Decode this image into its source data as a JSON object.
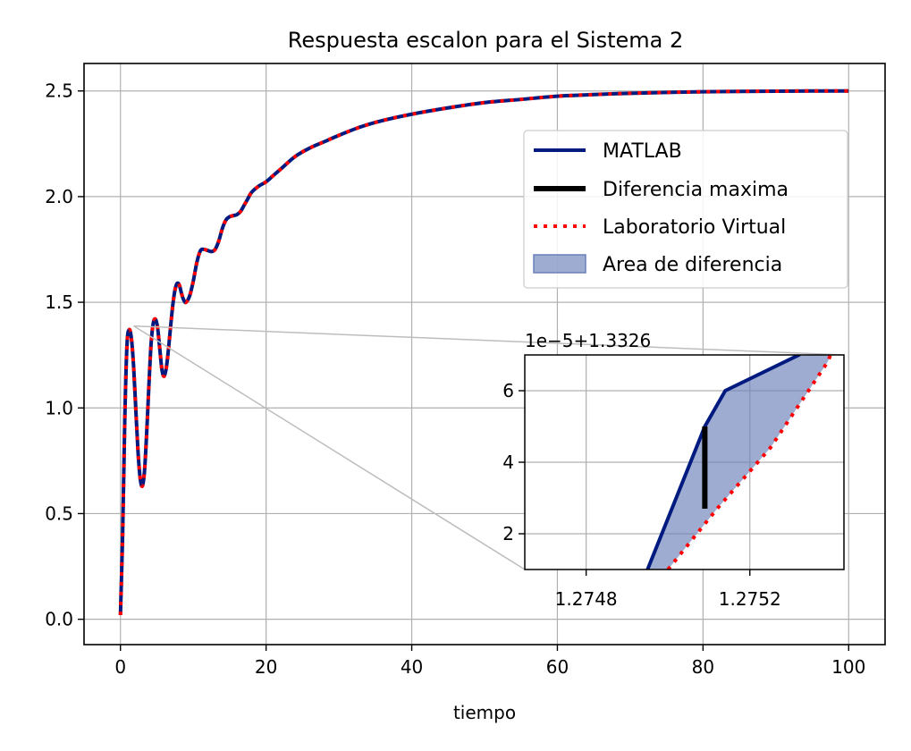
{
  "chart_data": {
    "type": "line",
    "title": "Respuesta escalon para el Sistema 2",
    "xlabel": "tiempo",
    "ylabel": "",
    "xlim": [
      -5,
      105
    ],
    "ylim": [
      -0.12,
      2.63
    ],
    "xticks": [
      0,
      20,
      40,
      60,
      80,
      100
    ],
    "xtick_labels": [
      "0",
      "20",
      "40",
      "60",
      "80",
      "100"
    ],
    "yticks": [
      0.0,
      0.5,
      1.0,
      1.5,
      2.0,
      2.5
    ],
    "ytick_labels": [
      "0.0",
      "0.5",
      "1.0",
      "1.5",
      "2.0",
      "2.5"
    ],
    "grid": true,
    "legend_position": "upper right",
    "colors": {
      "matlab": "#001a80",
      "diff": "#000000",
      "virtual": "#ff0000",
      "area": "#6b7fb8"
    },
    "series": [
      {
        "name": "MATLAB",
        "style": "solid",
        "x": [
          0,
          0.3,
          0.6,
          0.9,
          1.2,
          1.5,
          1.8,
          2.1,
          2.4,
          2.7,
          3.0,
          3.3,
          3.6,
          3.9,
          4.2,
          4.5,
          4.8,
          5.1,
          5.4,
          5.7,
          6.0,
          6.3,
          6.6,
          6.9,
          7.2,
          7.5,
          7.8,
          8.1,
          8.4,
          8.7,
          9.0,
          9.5,
          10.0,
          10.5,
          11.0,
          11.5,
          12.0,
          12.5,
          13.0,
          13.5,
          14.0,
          14.5,
          15.0,
          15.5,
          16.0,
          16.5,
          17.0,
          17.5,
          18.0,
          19.0,
          20.0,
          21.0,
          22.0,
          24.0,
          26.0,
          28.0,
          30.0,
          33.0,
          36.0,
          40.0,
          45.0,
          50.0,
          55.0,
          60.0,
          65.0,
          70.0,
          75.0,
          80.0,
          85.0,
          90.0,
          95.0,
          100.0
        ],
        "y": [
          0.02,
          0.4,
          0.95,
          1.3,
          1.37,
          1.33,
          1.2,
          1.0,
          0.8,
          0.67,
          0.63,
          0.7,
          0.88,
          1.1,
          1.3,
          1.4,
          1.42,
          1.38,
          1.28,
          1.18,
          1.15,
          1.19,
          1.28,
          1.39,
          1.49,
          1.56,
          1.59,
          1.58,
          1.54,
          1.51,
          1.5,
          1.53,
          1.6,
          1.69,
          1.745,
          1.75,
          1.745,
          1.74,
          1.75,
          1.79,
          1.85,
          1.89,
          1.905,
          1.91,
          1.915,
          1.93,
          1.96,
          1.99,
          2.02,
          2.05,
          2.07,
          2.1,
          2.13,
          2.19,
          2.23,
          2.26,
          2.29,
          2.33,
          2.36,
          2.39,
          2.42,
          2.445,
          2.46,
          2.475,
          2.483,
          2.489,
          2.493,
          2.496,
          2.498,
          2.499,
          2.5,
          2.5
        ]
      },
      {
        "name": "Laboratorio Virtual",
        "style": "dotted",
        "x": [
          0,
          0.3,
          0.6,
          0.9,
          1.2,
          1.5,
          1.8,
          2.1,
          2.4,
          2.7,
          3.0,
          3.3,
          3.6,
          3.9,
          4.2,
          4.5,
          4.8,
          5.1,
          5.4,
          5.7,
          6.0,
          6.3,
          6.6,
          6.9,
          7.2,
          7.5,
          7.8,
          8.1,
          8.4,
          8.7,
          9.0,
          9.5,
          10.0,
          10.5,
          11.0,
          11.5,
          12.0,
          12.5,
          13.0,
          13.5,
          14.0,
          14.5,
          15.0,
          15.5,
          16.0,
          16.5,
          17.0,
          17.5,
          18.0,
          19.0,
          20.0,
          21.0,
          22.0,
          24.0,
          26.0,
          28.0,
          30.0,
          33.0,
          36.0,
          40.0,
          45.0,
          50.0,
          55.0,
          60.0,
          65.0,
          70.0,
          75.0,
          80.0,
          85.0,
          90.0,
          95.0,
          100.0
        ],
        "y": [
          0.02,
          0.4,
          0.95,
          1.3,
          1.37,
          1.33,
          1.2,
          1.0,
          0.8,
          0.67,
          0.63,
          0.7,
          0.88,
          1.1,
          1.3,
          1.4,
          1.42,
          1.38,
          1.28,
          1.18,
          1.15,
          1.19,
          1.28,
          1.39,
          1.49,
          1.56,
          1.59,
          1.58,
          1.54,
          1.51,
          1.5,
          1.53,
          1.6,
          1.69,
          1.745,
          1.75,
          1.745,
          1.74,
          1.75,
          1.79,
          1.85,
          1.89,
          1.905,
          1.91,
          1.915,
          1.93,
          1.96,
          1.99,
          2.02,
          2.05,
          2.07,
          2.1,
          2.13,
          2.19,
          2.23,
          2.26,
          2.29,
          2.33,
          2.36,
          2.39,
          2.42,
          2.445,
          2.46,
          2.475,
          2.483,
          2.489,
          2.493,
          2.496,
          2.498,
          2.499,
          2.5,
          2.5
        ]
      }
    ],
    "legend": [
      {
        "label": "MATLAB",
        "kind": "solid"
      },
      {
        "label": "Diferencia maxima",
        "kind": "thick"
      },
      {
        "label": "Laboratorio Virtual",
        "kind": "dotted"
      },
      {
        "label": "Area de diferencia",
        "kind": "patch"
      }
    ],
    "inset": {
      "offset_label": "1e−5+1.3326",
      "xlim": [
        1.27465,
        1.27543
      ],
      "ylim": [
        1.0,
        7.0
      ],
      "xticks": [
        1.2748,
        1.2752
      ],
      "xtick_labels": [
        "1.2748",
        "1.2752"
      ],
      "yticks": [
        2,
        4,
        6
      ],
      "ytick_labels": [
        "2",
        "4",
        "6"
      ],
      "zoom_source": {
        "x": [
          0.6,
          1.8
        ],
        "y": 1.3326
      },
      "matlab": {
        "x": [
          1.27495,
          1.27509,
          1.27514,
          1.27532
        ],
        "y": [
          1.0,
          5.0,
          6.0,
          7.0
        ]
      },
      "virtual": {
        "x": [
          1.275,
          1.27512,
          1.27525,
          1.27539
        ],
        "y": [
          1.0,
          2.7,
          4.4,
          6.8
        ]
      },
      "max_diff": {
        "x": 1.27509,
        "y": [
          2.7,
          5.0
        ]
      }
    }
  }
}
